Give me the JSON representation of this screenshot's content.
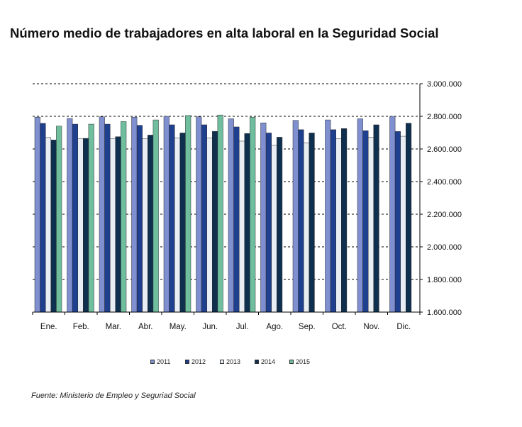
{
  "chart_data": {
    "type": "bar",
    "title": "Número medio de trabajadores en alta laboral en la Seguridad Social",
    "categories": [
      "Ene.",
      "Feb.",
      "Mar.",
      "Abr.",
      "May.",
      "Jun.",
      "Jul.",
      "Ago.",
      "Sep.",
      "Oct.",
      "Nov.",
      "Dic."
    ],
    "ylim": [
      1600000,
      3000000
    ],
    "yticks": [
      1600000,
      1800000,
      2000000,
      2200000,
      2400000,
      2600000,
      2800000,
      3000000
    ],
    "ytick_labels": [
      "1.600.000",
      "1.800.000",
      "2.000.000",
      "2.200.000",
      "2.400.000",
      "2.600.000",
      "2.800.000",
      "3.000.000"
    ],
    "grid": "dashed horizontal",
    "legend_position": "bottom",
    "series": [
      {
        "name": "2011",
        "color": "#7f8fcf",
        "values": [
          2795000,
          2787000,
          2797000,
          2795000,
          2800000,
          2797000,
          2785000,
          2760000,
          2775000,
          2778000,
          2785000,
          2800000
        ]
      },
      {
        "name": "2012",
        "color": "#1f3f8f",
        "values": [
          2757000,
          2752000,
          2752000,
          2745000,
          2748000,
          2748000,
          2735000,
          2698000,
          2718000,
          2718000,
          2712000,
          2707000
        ]
      },
      {
        "name": "2013",
        "color": "#e8eef4",
        "values": [
          2670000,
          2662000,
          2662000,
          2662000,
          2668000,
          2668000,
          2648000,
          2622000,
          2638000,
          2662000,
          2672000,
          2678000
        ]
      },
      {
        "name": "2014",
        "color": "#0f2f4f",
        "values": [
          2655000,
          2665000,
          2675000,
          2685000,
          2698000,
          2708000,
          2695000,
          2672000,
          2698000,
          2725000,
          2748000,
          2758000
        ]
      },
      {
        "name": "2015",
        "color": "#6fbf9f",
        "values": [
          2740000,
          2752000,
          2768000,
          2778000,
          2805000,
          2808000,
          2795000,
          null,
          null,
          null,
          null,
          null
        ]
      }
    ]
  },
  "source": "Fuente: Ministerio de Empleo y Seguriad Social"
}
